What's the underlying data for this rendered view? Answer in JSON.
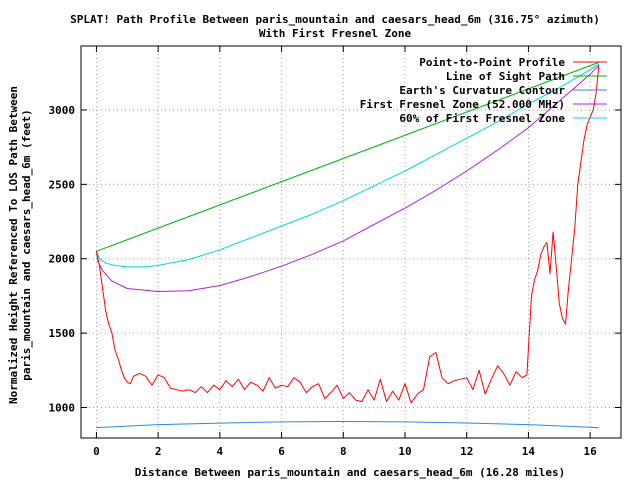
{
  "chart_data": {
    "type": "line",
    "title": "SPLAT! Path Profile Between paris_mountain and caesars_head_6m (316.75° azimuth)",
    "subtitle": "With First Fresnel Zone",
    "xlabel": "Distance Between paris_mountain and caesars_head_6m (16.28 miles)",
    "ylabel_line1": "Normalized Height Referenced To LOS Path Between",
    "ylabel_line2": "paris_mountain and caesars_head_6m (feet)",
    "xlim": [
      -0.5,
      17
    ],
    "ylim": [
      795,
      3430
    ],
    "x_ticks": [
      0,
      2,
      4,
      6,
      8,
      10,
      12,
      14,
      16
    ],
    "y_ticks": [
      1000,
      1500,
      2000,
      2500,
      3000
    ],
    "grid": true,
    "legend_position": "top-right",
    "series": [
      {
        "name": "Point-to-Point Profile",
        "color": "#ff0000",
        "x": [
          0,
          0.1,
          0.2,
          0.3,
          0.4,
          0.5,
          0.6,
          0.7,
          0.8,
          0.9,
          1.0,
          1.1,
          1.2,
          1.4,
          1.6,
          1.8,
          2.0,
          2.2,
          2.4,
          2.6,
          2.8,
          3.0,
          3.2,
          3.4,
          3.6,
          3.8,
          4.0,
          4.2,
          4.4,
          4.6,
          4.8,
          5.0,
          5.2,
          5.4,
          5.6,
          5.8,
          6.0,
          6.2,
          6.4,
          6.6,
          6.8,
          7.0,
          7.2,
          7.4,
          7.6,
          7.8,
          8.0,
          8.2,
          8.4,
          8.6,
          8.8,
          9.0,
          9.2,
          9.4,
          9.6,
          9.8,
          10.0,
          10.2,
          10.4,
          10.6,
          10.8,
          11.0,
          11.2,
          11.4,
          11.6,
          11.8,
          12.0,
          12.2,
          12.4,
          12.6,
          12.8,
          13.0,
          13.2,
          13.4,
          13.6,
          13.8,
          13.95,
          14.1,
          14.2,
          14.3,
          14.4,
          14.5,
          14.6,
          14.7,
          14.8,
          14.9,
          15.0,
          15.1,
          15.2,
          15.3,
          15.4,
          15.5,
          15.6,
          15.7,
          15.8,
          15.9,
          16.0,
          16.1,
          16.2,
          16.28
        ],
        "values": [
          2050,
          1950,
          1800,
          1650,
          1560,
          1500,
          1390,
          1330,
          1260,
          1200,
          1170,
          1160,
          1210,
          1230,
          1210,
          1150,
          1220,
          1200,
          1130,
          1120,
          1110,
          1120,
          1100,
          1140,
          1100,
          1150,
          1120,
          1180,
          1140,
          1190,
          1120,
          1170,
          1150,
          1110,
          1200,
          1130,
          1150,
          1140,
          1200,
          1170,
          1100,
          1140,
          1160,
          1060,
          1100,
          1150,
          1060,
          1100,
          1050,
          1040,
          1120,
          1050,
          1190,
          1040,
          1110,
          1050,
          1160,
          1030,
          1090,
          1120,
          1340,
          1370,
          1200,
          1160,
          1180,
          1190,
          1200,
          1120,
          1250,
          1090,
          1190,
          1280,
          1230,
          1150,
          1240,
          1200,
          1220,
          1750,
          1860,
          1920,
          2030,
          2080,
          2110,
          1900,
          2180,
          1950,
          1700,
          1600,
          1560,
          1800,
          2000,
          2200,
          2500,
          2650,
          2800,
          2900,
          2950,
          3000,
          3120,
          3300
        ]
      },
      {
        "name": "Line of Sight Path",
        "color": "#00b000",
        "x": [
          0,
          16.28
        ],
        "values": [
          2050,
          3320
        ]
      },
      {
        "name": "Earth's Curvature Contour",
        "color": "#2c8ad6",
        "x": [
          0,
          2,
          4,
          6,
          8,
          10,
          12,
          14,
          16.28
        ],
        "values": [
          865,
          885,
          895,
          903,
          906,
          903,
          896,
          885,
          865
        ]
      },
      {
        "name": "First Fresnel Zone (52.000 MHz)",
        "color": "#b020d8",
        "x": [
          0,
          0.05,
          0.2,
          0.5,
          1,
          2,
          3,
          4,
          5,
          6,
          7,
          8,
          9,
          10,
          11,
          12,
          13,
          14,
          15,
          15.5,
          16,
          16.28
        ],
        "values": [
          2050,
          1980,
          1920,
          1850,
          1800,
          1780,
          1785,
          1820,
          1880,
          1950,
          2030,
          2120,
          2230,
          2340,
          2460,
          2590,
          2730,
          2880,
          3060,
          3150,
          3240,
          3300
        ]
      },
      {
        "name": "60% of First Fresnel Zone",
        "color": "#00d8d8",
        "x": [
          0,
          0.1,
          0.3,
          0.6,
          1,
          1.6,
          2,
          3,
          4,
          5,
          6,
          7,
          8,
          9,
          10,
          11,
          12,
          13,
          14,
          15,
          15.5,
          16,
          16.28
        ],
        "values": [
          2050,
          2000,
          1970,
          1955,
          1945,
          1945,
          1955,
          1995,
          2060,
          2140,
          2220,
          2300,
          2390,
          2490,
          2590,
          2700,
          2810,
          2920,
          3040,
          3150,
          3210,
          3270,
          3310
        ]
      }
    ]
  }
}
